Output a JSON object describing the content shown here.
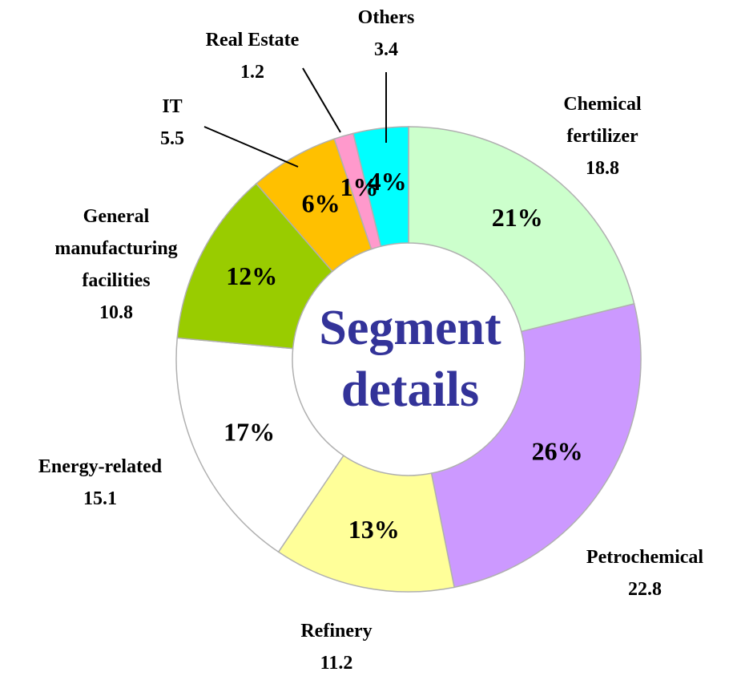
{
  "chart_data": {
    "type": "donut",
    "center_text": [
      "Segment",
      "details"
    ],
    "categories": [
      "Chemical fertilizer",
      "Petrochemical",
      "Refinery",
      "Energy-related",
      "General manufacturing facilities",
      "IT",
      "Real Estate",
      "Others"
    ],
    "values": [
      18.8,
      22.8,
      11.2,
      15.1,
      10.8,
      5.5,
      1.2,
      3.4
    ],
    "percent_labels": [
      "21%",
      "26%",
      "13%",
      "17%",
      "12%",
      "6%",
      "1%",
      "4%"
    ],
    "colors": [
      "#ccffcc",
      "#cc99ff",
      "#ffff99",
      "#ffffff",
      "#99cc00",
      "#ffc000",
      "#ff99cc",
      "#00ffff"
    ]
  }
}
